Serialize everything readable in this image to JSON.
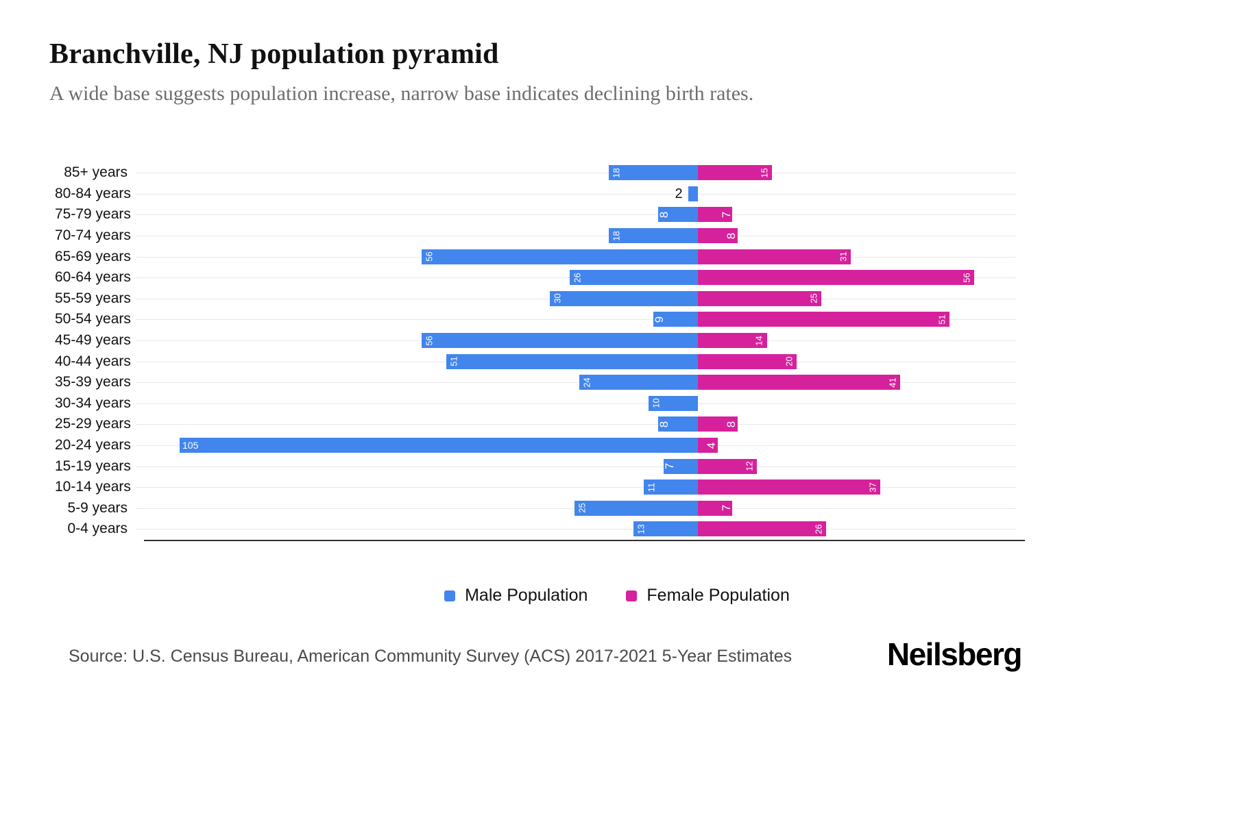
{
  "title": "Branchville, NJ population pyramid",
  "subtitle": "A wide base suggests population increase, narrow base indicates declining birth rates.",
  "source": "Source: U.S. Census Bureau, American Community Survey (ACS) 2017-2021 5-Year Estimates",
  "brand": "Neilsberg",
  "legend": {
    "male": "Male Population",
    "female": "Female Population"
  },
  "colors": {
    "male": "#4285EC",
    "female": "#D6219C"
  },
  "chart_data": {
    "type": "bar",
    "variant": "population-pyramid",
    "orientation": "horizontal",
    "title": "Branchville, NJ population pyramid",
    "categories": [
      "85+ years",
      "80-84 years",
      "75-79 years",
      "70-74 years",
      "65-69 years",
      "60-64 years",
      "55-59 years",
      "50-54 years",
      "45-49 years",
      "40-44 years",
      "35-39 years",
      "30-34 years",
      "25-29 years",
      "20-24 years",
      "15-19 years",
      "10-14 years",
      "5-9 years",
      "0-4 years"
    ],
    "series": [
      {
        "name": "Male Population",
        "color": "#4285EC",
        "direction": "left",
        "values": [
          18,
          2,
          8,
          18,
          56,
          26,
          30,
          9,
          56,
          51,
          24,
          10,
          8,
          105,
          7,
          11,
          25,
          13
        ]
      },
      {
        "name": "Female Population",
        "color": "#D6219C",
        "direction": "right",
        "values": [
          15,
          0,
          7,
          8,
          31,
          56,
          25,
          51,
          14,
          20,
          41,
          0,
          8,
          4,
          12,
          37,
          7,
          26
        ]
      }
    ],
    "value_labels": "inside-bar-ends",
    "grid": "horizontal-light",
    "legend_position": "bottom",
    "male_axis_max": 114,
    "female_axis_max": 65
  }
}
